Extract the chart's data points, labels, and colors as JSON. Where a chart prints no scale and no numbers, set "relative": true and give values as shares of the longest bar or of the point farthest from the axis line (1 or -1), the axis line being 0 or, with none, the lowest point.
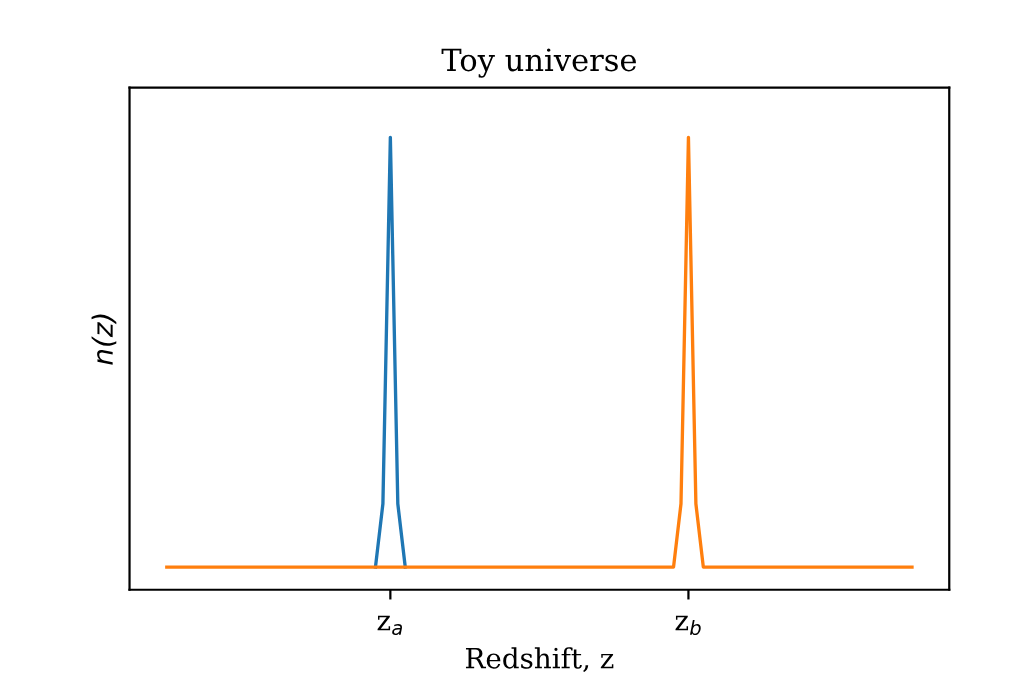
{
  "chart_data": {
    "type": "line",
    "title": "Toy universe",
    "xlabel": "Redshift, z",
    "ylabel": "n(z)",
    "relative": true,
    "tick_labels": "x",
    "grid": false,
    "categories": [
      null,
      null,
      null,
      null,
      null,
      null,
      null,
      null,
      null,
      null,
      null,
      null,
      null,
      null,
      null,
      null,
      null,
      null,
      null,
      null,
      null,
      null,
      null,
      null,
      null,
      null,
      null,
      null,
      null,
      null,
      "z$_{a}$",
      null,
      null,
      null,
      null,
      null,
      null,
      null,
      null,
      null,
      null,
      null,
      null,
      null,
      null,
      null,
      null,
      null,
      null,
      null,
      null,
      null,
      null,
      null,
      null,
      null,
      null,
      null,
      null,
      null,
      null,
      null,
      null,
      null,
      null,
      null,
      null,
      null,
      null,
      null,
      "z$_{b}$",
      null,
      null,
      null,
      null,
      null,
      null,
      null,
      null,
      null,
      null,
      null,
      null,
      null,
      null,
      null,
      null,
      null,
      null,
      null,
      null,
      null,
      null,
      null,
      null,
      null,
      null,
      null,
      null,
      null,
      null
    ],
    "series": [
      {
        "color": "#1f77b4",
        "values": [
          null,
          null,
          null,
          null,
          null,
          null,
          null,
          null,
          null,
          null,
          null,
          null,
          null,
          null,
          null,
          null,
          null,
          null,
          null,
          null,
          null,
          null,
          null,
          null,
          null,
          null,
          null,
          null,
          0.05,
          0.19,
          1,
          0.19,
          0.05,
          null,
          null,
          null,
          null,
          null,
          null,
          null,
          null,
          null,
          null,
          null,
          null,
          null,
          null,
          null,
          null,
          null,
          null,
          null,
          null,
          null,
          null,
          null,
          null,
          null,
          null,
          null,
          null,
          null,
          null,
          null,
          null,
          null,
          null,
          null,
          null,
          null,
          null,
          null,
          null,
          null,
          null,
          null,
          null,
          null,
          null,
          null,
          null,
          null,
          null,
          null,
          null,
          null,
          null,
          null,
          null,
          null,
          null,
          null,
          null,
          null,
          null,
          null,
          null,
          null,
          null,
          null,
          null
        ]
      },
      {
        "color": "#ff7f0e",
        "values": [
          0.05,
          0.05,
          0.05,
          0.05,
          0.05,
          0.05,
          0.05,
          0.05,
          0.05,
          0.05,
          0.05,
          0.05,
          0.05,
          0.05,
          0.05,
          0.05,
          0.05,
          0.05,
          0.05,
          0.05,
          0.05,
          0.05,
          0.05,
          0.05,
          0.05,
          0.05,
          0.05,
          0.05,
          0.05,
          0.05,
          0.05,
          0.05,
          0.05,
          0.05,
          0.05,
          0.05,
          0.05,
          0.05,
          0.05,
          0.05,
          0.05,
          0.05,
          0.05,
          0.05,
          0.05,
          0.05,
          0.05,
          0.05,
          0.05,
          0.05,
          0.05,
          0.05,
          0.05,
          0.05,
          0.05,
          0.05,
          0.05,
          0.05,
          0.05,
          0.05,
          0.05,
          0.05,
          0.05,
          0.05,
          0.05,
          0.05,
          0.05,
          0.05,
          0.05,
          0.19,
          1,
          0.19,
          0.05,
          0.05,
          0.05,
          0.05,
          0.05,
          0.05,
          0.05,
          0.05,
          0.05,
          0.05,
          0.05,
          0.05,
          0.05,
          0.05,
          0.05,
          0.05,
          0.05,
          0.05,
          0.05,
          0.05,
          0.05,
          0.05,
          0.05,
          0.05,
          0.05,
          0.05,
          0.05,
          0.05,
          0.05
        ]
      }
    ]
  }
}
